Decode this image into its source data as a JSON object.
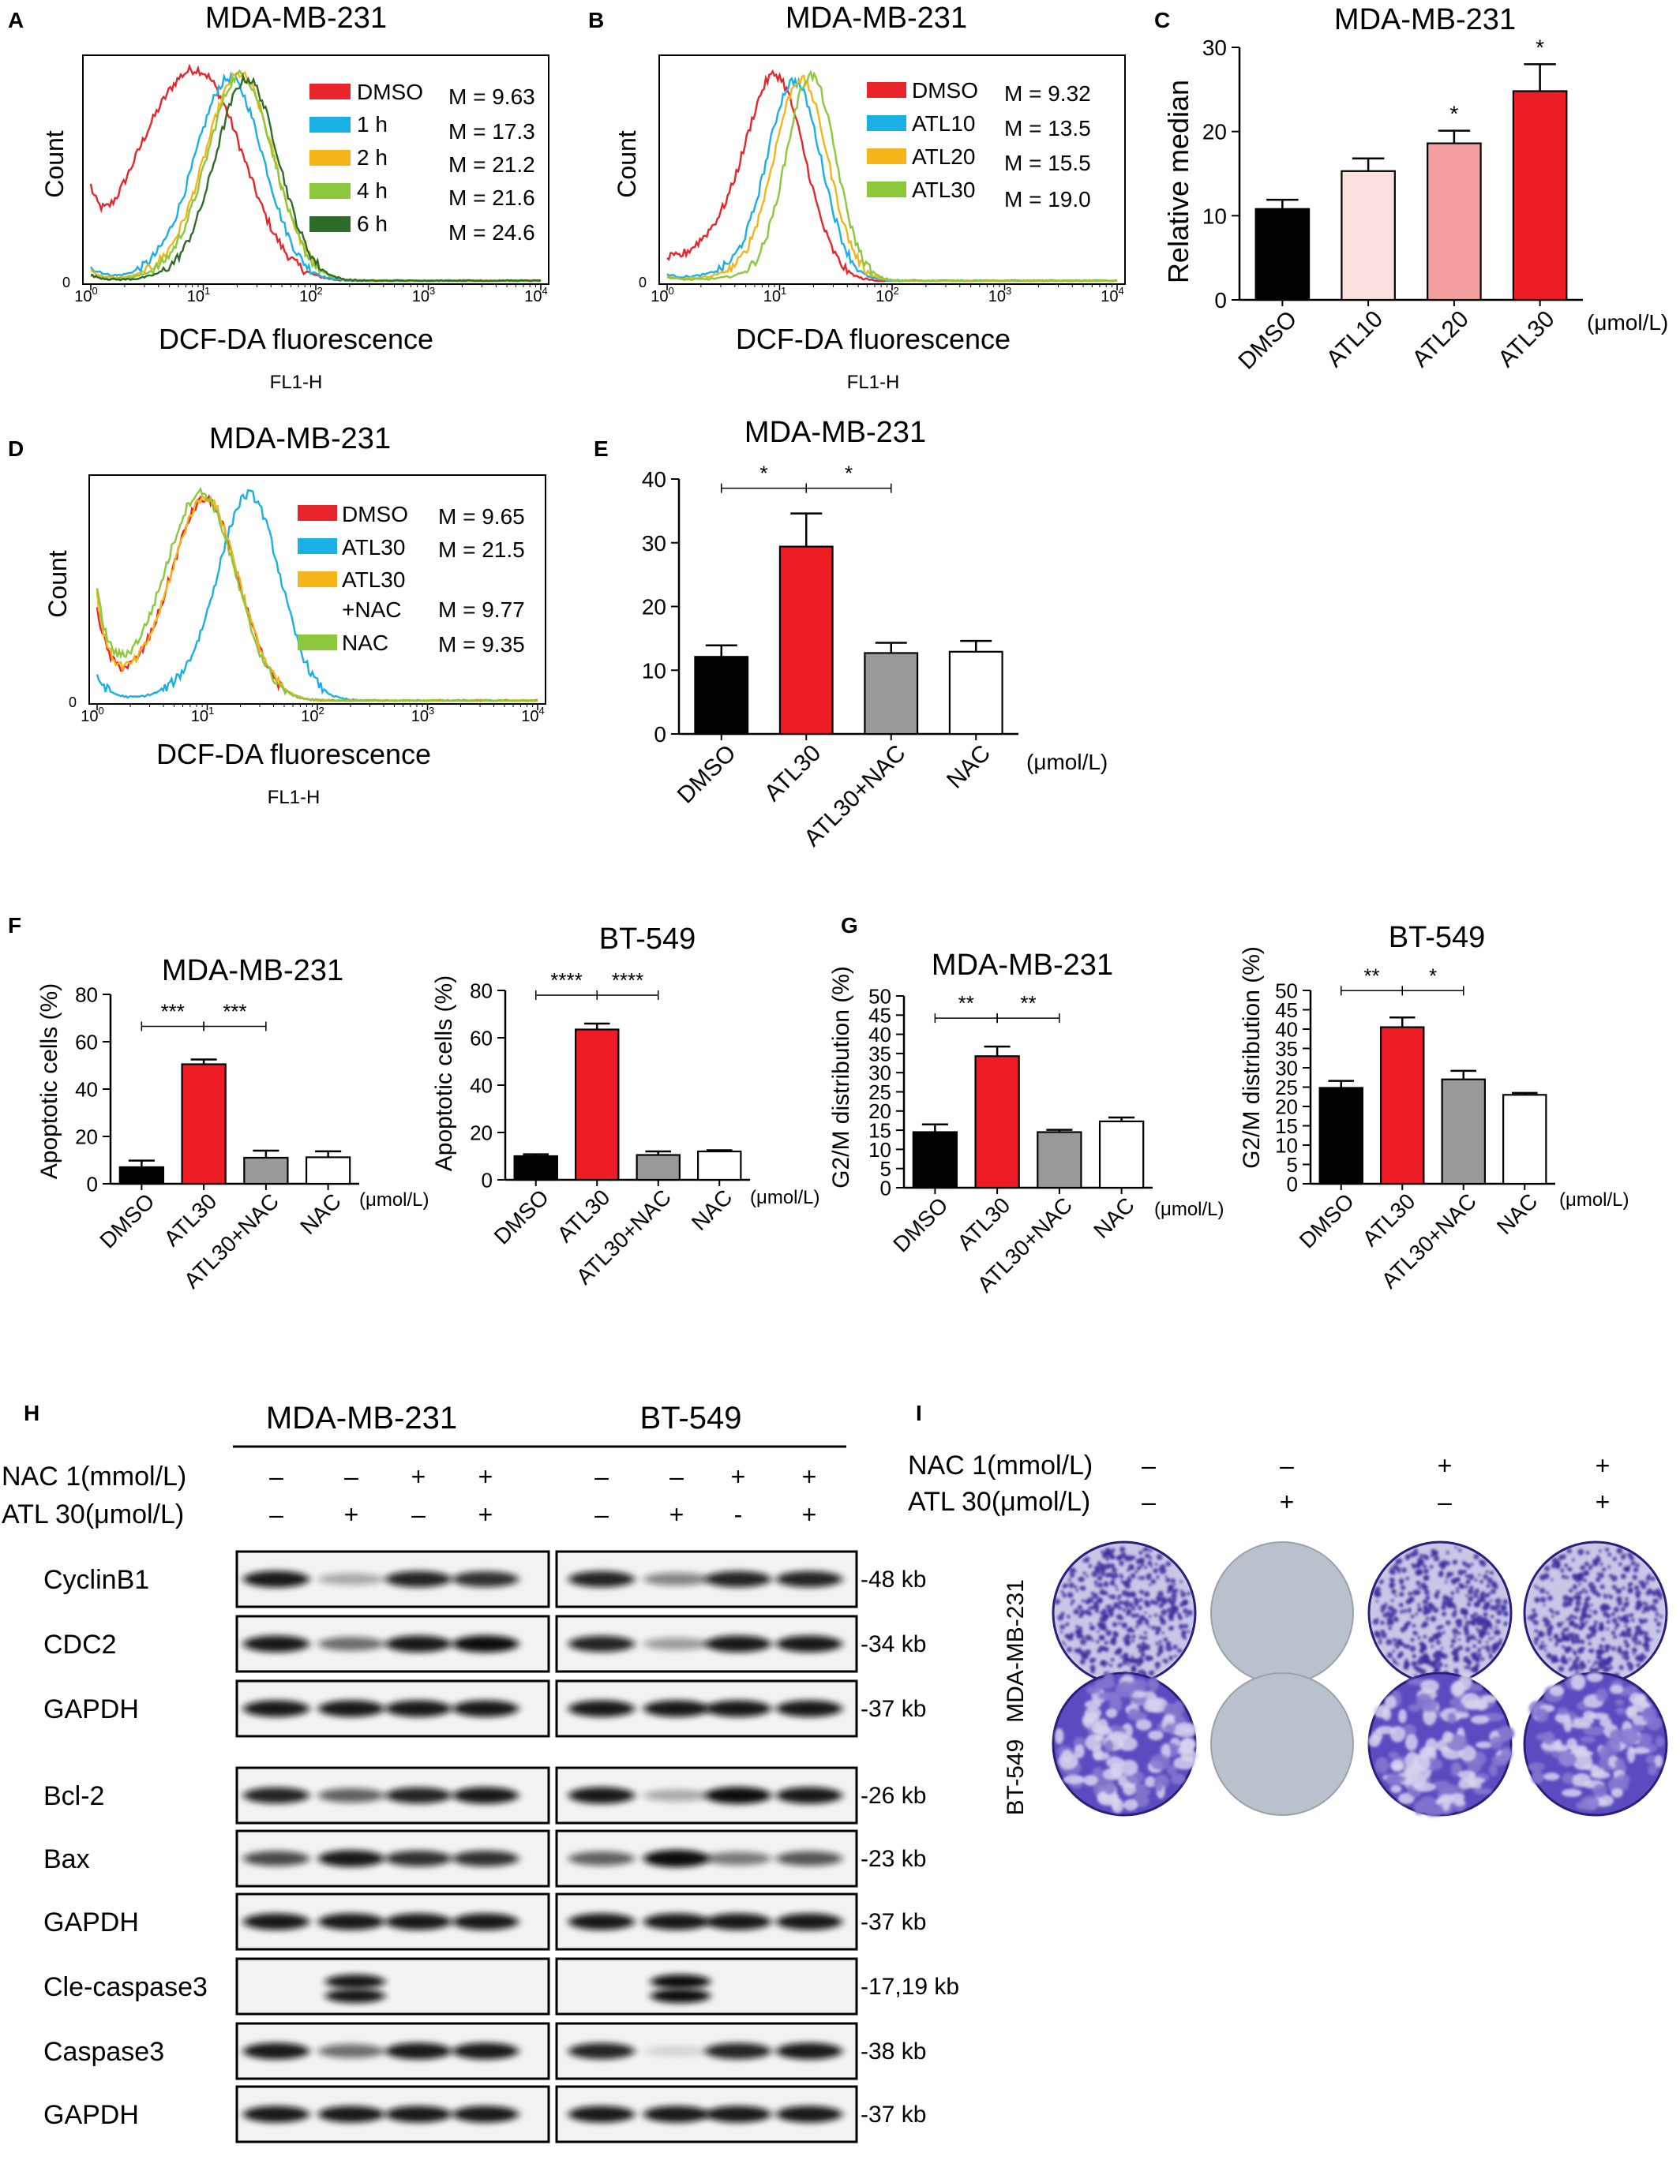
{
  "panel_letters": [
    "A",
    "B",
    "C",
    "D",
    "E",
    "F",
    "G",
    "H",
    "I"
  ],
  "colors": {
    "DMSO": "#e8252a",
    "t1h": "#1ab0e6",
    "t2h": "#f5b41a",
    "t4h": "#8cc83c",
    "t6h": "#2f6b2a",
    "ATL10": "#1ab0e6",
    "ATL20": "#f5b41a",
    "ATL30_line": "#8cc83c",
    "bar_black": "#000000",
    "bar_red": "#ee1c24",
    "bar_grey": "#999999",
    "bar_white": "#ffffff",
    "bar_pink_light": "#fbe0e0",
    "bar_pink": "#f5a0a0",
    "crystal_violet": "#3d2a9e",
    "plate_empty": "#b9c1cc"
  },
  "chart_data": [
    {
      "id": "A",
      "type": "histogram-overlay",
      "title": "MDA-MB-231",
      "xlabel": "DCF-DA fluorescence",
      "xsublabel": "FL1-H",
      "ylabel": "Count",
      "xscale": "log",
      "xticks": [
        "10^0",
        "10^1",
        "10^2",
        "10^3",
        "10^4"
      ],
      "ytick": "0",
      "series": [
        {
          "name": "DMSO",
          "median": 9.63,
          "stat": "M = 9.63"
        },
        {
          "name": "1 h",
          "median": 17.3,
          "stat": "M = 17.3"
        },
        {
          "name": "2 h",
          "median": 21.2,
          "stat": "M = 21.2"
        },
        {
          "name": "4 h",
          "median": 21.6,
          "stat": "M = 21.6"
        },
        {
          "name": "6 h",
          "median": 24.6,
          "stat": "M = 24.6"
        }
      ]
    },
    {
      "id": "B",
      "type": "histogram-overlay",
      "title": "MDA-MB-231",
      "xlabel": "DCF-DA fluorescence",
      "xsublabel": "FL1-H",
      "ylabel": "Count",
      "xscale": "log",
      "xticks": [
        "10^0",
        "10^1",
        "10^2",
        "10^3",
        "10^4"
      ],
      "ytick": "0",
      "series": [
        {
          "name": "DMSO",
          "median": 9.32,
          "stat": "M = 9.32"
        },
        {
          "name": "ATL10",
          "median": 13.5,
          "stat": "M = 13.5"
        },
        {
          "name": "ATL20",
          "median": 15.5,
          "stat": "M = 15.5"
        },
        {
          "name": "ATL30",
          "median": 19.0,
          "stat": "M = 19.0"
        }
      ]
    },
    {
      "id": "C",
      "type": "bar",
      "title": "MDA-MB-231",
      "ylabel": "Relative median",
      "unit": "(μmol/L)",
      "ylim": [
        0,
        30
      ],
      "yticks": [
        0,
        10,
        20,
        30
      ],
      "categories": [
        "DMSO",
        "ATL10",
        "ATL20",
        "ATL30"
      ],
      "values": [
        10.8,
        15.3,
        18.6,
        24.8
      ],
      "errors": [
        1.1,
        1.5,
        1.5,
        3.2
      ],
      "significance": [
        "",
        "",
        "*",
        "*"
      ]
    },
    {
      "id": "D",
      "type": "histogram-overlay",
      "title": "MDA-MB-231",
      "xlabel": "DCF-DA fluorescence",
      "xsublabel": "FL1-H",
      "ylabel": "Count",
      "xscale": "log",
      "xticks": [
        "10^0",
        "10^1",
        "10^2",
        "10^3",
        "10^4"
      ],
      "ytick": "0",
      "series": [
        {
          "name": "DMSO",
          "median": 9.65,
          "stat": "M = 9.65"
        },
        {
          "name": "ATL30",
          "median": 21.5,
          "stat": "M = 21.5"
        },
        {
          "name": "ATL30 +NAC",
          "median": 9.77,
          "stat": "M = 9.77"
        },
        {
          "name": "NAC",
          "median": 9.35,
          "stat": "M = 9.35"
        }
      ]
    },
    {
      "id": "E",
      "type": "bar",
      "title": "MDA-MB-231",
      "ylabel": "",
      "unit": "(μmol/L)",
      "ylim": [
        0,
        40
      ],
      "yticks": [
        0,
        10,
        20,
        30,
        40
      ],
      "categories": [
        "DMSO",
        "ATL30",
        "ATL30+NAC",
        "NAC"
      ],
      "values": [
        12.1,
        29.4,
        12.7,
        12.9
      ],
      "errors": [
        1.8,
        5.2,
        1.6,
        1.7
      ],
      "brackets": [
        {
          "from": 0,
          "to": 1,
          "label": "*"
        },
        {
          "from": 1,
          "to": 2,
          "label": "*"
        }
      ]
    },
    {
      "id": "F1",
      "type": "bar",
      "title": "MDA-MB-231",
      "ylabel": "Apoptotic cells (%)",
      "unit": "(μmol/L)",
      "ylim": [
        0,
        80
      ],
      "yticks": [
        0,
        20,
        40,
        60,
        80
      ],
      "categories": [
        "DMSO",
        "ATL30",
        "ATL30+NAC",
        "NAC"
      ],
      "values": [
        7.0,
        50.5,
        11.0,
        11.2
      ],
      "errors": [
        2.8,
        2.0,
        3.0,
        2.5
      ],
      "brackets": [
        {
          "from": 0,
          "to": 1,
          "label": "***"
        },
        {
          "from": 1,
          "to": 2,
          "label": "***"
        }
      ]
    },
    {
      "id": "F2",
      "type": "bar",
      "title": "BT-549",
      "ylabel": "Apoptotic cells (%)",
      "unit": "(μmol/L)",
      "ylim": [
        0,
        80
      ],
      "yticks": [
        0,
        20,
        40,
        60,
        80
      ],
      "categories": [
        "DMSO",
        "ATL30",
        "ATL30+NAC",
        "NAC"
      ],
      "values": [
        10.0,
        63.5,
        10.5,
        12.0
      ],
      "errors": [
        0.8,
        2.5,
        1.5,
        0.5
      ],
      "brackets": [
        {
          "from": 0,
          "to": 1,
          "label": "****"
        },
        {
          "from": 1,
          "to": 2,
          "label": "****"
        }
      ]
    },
    {
      "id": "G1",
      "type": "bar",
      "title": "MDA-MB-231",
      "ylabel": "G2/M distribution (%)",
      "unit": "(μmol/L)",
      "ylim": [
        0,
        50
      ],
      "yticks": [
        0,
        5,
        10,
        15,
        20,
        25,
        30,
        35,
        40,
        45,
        50
      ],
      "categories": [
        "DMSO",
        "ATL30",
        "ATL30+NAC",
        "NAC"
      ],
      "values": [
        14.5,
        34.3,
        14.5,
        17.3
      ],
      "errors": [
        2.0,
        2.5,
        0.6,
        1.0
      ],
      "brackets": [
        {
          "from": 0,
          "to": 1,
          "label": "**"
        },
        {
          "from": 1,
          "to": 2,
          "label": "**"
        }
      ]
    },
    {
      "id": "G2",
      "type": "bar",
      "title": "BT-549",
      "ylabel": "G2/M distribution (%)",
      "unit": "(μmol/L)",
      "ylim": [
        0,
        50
      ],
      "yticks": [
        0,
        5,
        10,
        15,
        20,
        25,
        30,
        35,
        40,
        45,
        50
      ],
      "categories": [
        "DMSO",
        "ATL30",
        "ATL30+NAC",
        "NAC"
      ],
      "values": [
        24.8,
        40.5,
        27.0,
        23.0
      ],
      "errors": [
        1.8,
        2.5,
        2.2,
        0.5
      ],
      "brackets": [
        {
          "from": 0,
          "to": 1,
          "label": "**"
        },
        {
          "from": 1,
          "to": 2,
          "label": "*"
        }
      ]
    }
  ],
  "western": {
    "cell_lines": [
      "MDA-MB-231",
      "BT-549"
    ],
    "treat_labels": [
      "NAC 1(mmol/L)",
      "ATL 30(μmol/L)"
    ],
    "nac_signs": [
      "–",
      "–",
      "+",
      "+",
      "–",
      "–",
      "+",
      "+"
    ],
    "atl_signs": [
      "–",
      "+",
      "–",
      "+",
      "–",
      "+",
      "-",
      "+"
    ],
    "rows": [
      {
        "protein": "CyclinB1",
        "size": "48 kb",
        "intensity": [
          0.9,
          0.3,
          0.85,
          0.8,
          0.85,
          0.45,
          0.85,
          0.85
        ]
      },
      {
        "protein": "CDC2",
        "size": "34 kb",
        "intensity": [
          0.9,
          0.55,
          0.9,
          0.95,
          0.85,
          0.35,
          0.9,
          0.9
        ]
      },
      {
        "protein": "GAPDH",
        "size": "37 kb",
        "intensity": [
          0.9,
          0.9,
          0.9,
          0.9,
          0.9,
          0.9,
          0.9,
          0.9
        ]
      },
      {
        "protein": "Bcl-2",
        "size": "26 kb",
        "intensity": [
          0.85,
          0.6,
          0.85,
          0.9,
          0.9,
          0.3,
          0.95,
          0.9
        ]
      },
      {
        "protein": "Bax",
        "size": "23 kb",
        "intensity": [
          0.7,
          0.9,
          0.8,
          0.8,
          0.6,
          1.0,
          0.5,
          0.65
        ]
      },
      {
        "protein": "GAPDH",
        "size": "37 kb",
        "intensity": [
          0.9,
          0.9,
          0.9,
          0.9,
          0.9,
          0.9,
          0.9,
          0.9
        ]
      },
      {
        "protein": "Cle-caspase3",
        "size": "17,19 kb",
        "intensity": [
          0,
          0.95,
          0,
          0,
          0,
          1.0,
          0,
          0
        ]
      },
      {
        "protein": "Caspase3",
        "size": "38 kb",
        "intensity": [
          0.9,
          0.55,
          0.9,
          0.9,
          0.85,
          0.12,
          0.85,
          0.9
        ]
      },
      {
        "protein": "GAPDH",
        "size": "37 kb",
        "intensity": [
          0.9,
          0.9,
          0.9,
          0.9,
          0.9,
          0.9,
          0.9,
          0.9
        ]
      }
    ]
  },
  "colony": {
    "treat_labels": [
      "NAC 1(mmol/L)",
      "ATL 30(μmol/L)"
    ],
    "nac_signs": [
      "–",
      "–",
      "+",
      "+"
    ],
    "atl_signs": [
      "–",
      "+",
      "–",
      "+"
    ],
    "rows": [
      {
        "label": "MDA-MB-231",
        "density": [
          1.0,
          0.0,
          1.0,
          1.0
        ]
      },
      {
        "label": "BT-549",
        "density": [
          1.0,
          0.0,
          1.0,
          1.0
        ]
      }
    ]
  }
}
